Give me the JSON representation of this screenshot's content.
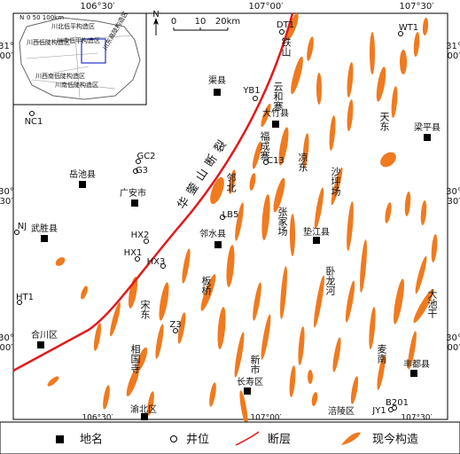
{
  "coordinates": {
    "top": [
      "106°30′",
      "107°00′",
      "107°30′"
    ],
    "bottom": [
      "106°30′",
      "107°00′",
      "107°30′"
    ],
    "left": [
      {
        "deg": "31°",
        "min": "00′"
      },
      {
        "deg": "30°",
        "min": "30′"
      },
      {
        "deg": "30°",
        "min": "00′"
      }
    ],
    "right": [
      {
        "deg": "31°",
        "min": "00′"
      },
      {
        "deg": "30°",
        "min": "30′"
      },
      {
        "deg": "30°",
        "min": "00′"
      }
    ]
  },
  "inset": {
    "north": "N",
    "scale": "0  50 100km",
    "regions": [
      "川北低平构造区",
      "川西低陡构造区",
      "川中低平构造区",
      "川东高陡构造区",
      "川西南低陡构造区",
      "川南低陡构造区"
    ]
  },
  "scale_bar": {
    "north": "N",
    "ticks": [
      "0",
      "10",
      "20km"
    ]
  },
  "fault_label": "华蓥山断裂",
  "places": [
    "渠县",
    "大竹县",
    "梁平县",
    "岳池县",
    "广安市",
    "武胜县",
    "邻水县",
    "垫江县",
    "合川区",
    "长寿区",
    "丰都县",
    "渝北区",
    "涪陵区"
  ],
  "wells": [
    "DT1",
    "WT1",
    "YB1",
    "NC1",
    "GC2",
    "G3",
    "C13",
    "LB5",
    "HX2",
    "HX1",
    "HX3",
    "NJ",
    "HT1",
    "Z3",
    "JY1",
    "B201"
  ],
  "structures": [
    "铁山",
    "云和寨",
    "福成寨",
    "凉东",
    "天东",
    "沙坪场",
    "张家场",
    "邻北",
    "卧龙河",
    "大池干",
    "板桥",
    "宋东",
    "相国寺",
    "新市",
    "麦南"
  ],
  "legend": [
    "地名",
    "井位",
    "断层",
    "现今构造"
  ]
}
